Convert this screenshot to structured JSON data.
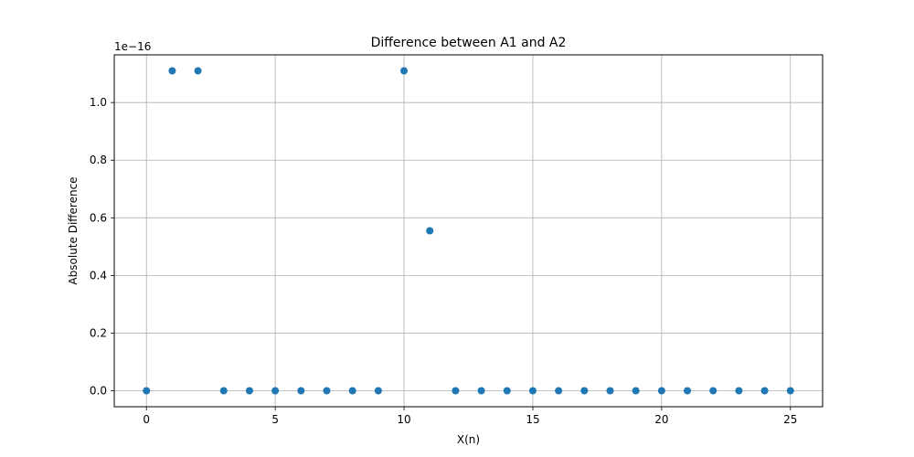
{
  "chart_data": {
    "type": "scatter",
    "title": "Difference between A1 and A2",
    "xlabel": "X(n)",
    "ylabel": "Absolute Difference",
    "y_offset_text": "1e−16",
    "x": [
      0,
      1,
      2,
      3,
      4,
      5,
      6,
      7,
      8,
      9,
      10,
      11,
      12,
      13,
      14,
      15,
      16,
      17,
      18,
      19,
      20,
      21,
      22,
      23,
      24,
      25
    ],
    "series": [
      {
        "values": [
          0,
          1.11,
          1.11,
          0,
          0,
          0,
          0,
          0,
          0,
          0,
          1.11,
          0.555,
          0,
          0,
          0,
          0,
          0,
          0,
          0,
          0,
          0,
          0,
          0,
          0,
          0,
          0
        ],
        "color": "#1f77b4"
      }
    ],
    "xlim": [
      -1.25,
      26.25
    ],
    "ylim": [
      -0.0555,
      1.1655
    ],
    "x_ticks": [
      "0",
      "5",
      "10",
      "15",
      "20",
      "25"
    ],
    "y_ticks": [
      "0.0",
      "0.2",
      "0.4",
      "0.6",
      "0.8",
      "1.0"
    ],
    "grid": true,
    "marker": "circle"
  }
}
